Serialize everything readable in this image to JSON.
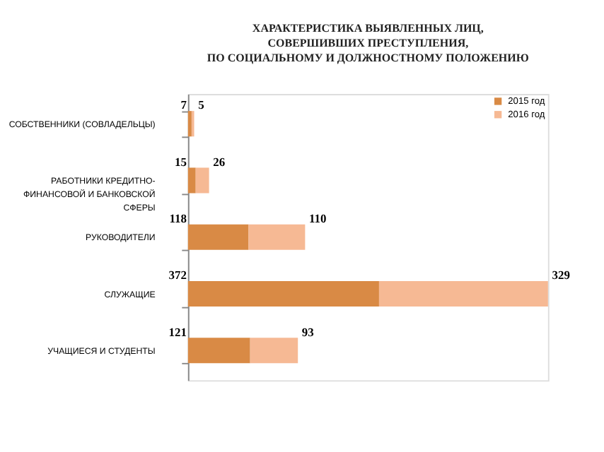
{
  "chart_data": {
    "type": "bar",
    "orientation": "horizontal",
    "stacked": true,
    "data_labels": true,
    "legend": "top right",
    "grid": false,
    "title": "ХАРАКТЕРИСТИКА ВЫЯВЛЕННЫХ ЛИЦ,\nСОВЕРШИВШИХ ПРЕСТУПЛЕНИЯ,\nПО СОЦИАЛЬНОМУ И ДОЛЖНОСТНОМУ ПОЛОЖЕНИЮ",
    "categories": [
      "СОБСТВЕННИКИ (СОВЛАДЕЛЬЦЫ)",
      "РАБОТНИКИ КРЕДИТНО-\nФИНАНСОВОЙ И БАНКОВСКОЙ\nСФЕРЫ",
      "РУКОВОДИТЕЛИ",
      "СЛУЖАЩИЕ",
      "УЧАЩИЕСЯ И СТУДЕНТЫ"
    ],
    "series": [
      {
        "name": "2015 год",
        "color": "#d98a45",
        "values": [
          7,
          15,
          118,
          372,
          121
        ]
      },
      {
        "name": "2016 год",
        "color": "#f6b994",
        "values": [
          5,
          26,
          110,
          329,
          93
        ]
      }
    ]
  }
}
